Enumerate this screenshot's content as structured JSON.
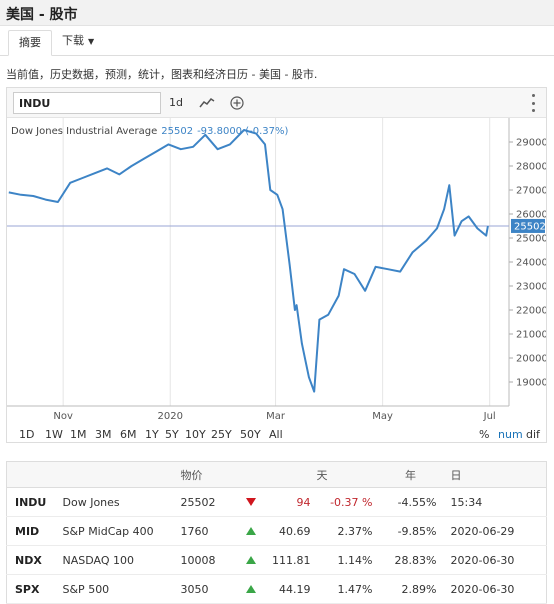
{
  "page": {
    "title": "美国 - 股市"
  },
  "tabs": [
    {
      "label": "摘要",
      "active": true
    },
    {
      "label": "下载",
      "active": false
    }
  ],
  "description": "当前值，历史数据，预测，统计，图表和经济日历 - 美国 - 股市.",
  "toolbar": {
    "symbol_value": "INDU",
    "interval_label": "1d",
    "chart_type_icon": "line-chart-icon",
    "add_icon": "plus-circle-icon",
    "menu_icon": "kebab-menu-icon"
  },
  "chart_data": {
    "type": "line",
    "series": [
      {
        "name": "Dow Jones Industrial Average"
      }
    ],
    "legend": {
      "name": "Dow Jones Industrial Average",
      "value": "25502",
      "change": "-93.8000 (-0.37%)"
    },
    "current_value": 25502,
    "current_label": "25502",
    "ylim": [
      18000,
      30000
    ],
    "yticks": [
      "19000",
      "20000",
      "21000",
      "22000",
      "23000",
      "24000",
      "25000",
      "26000",
      "27000",
      "28000",
      "29000"
    ],
    "xticks": [
      "Nov",
      "2020",
      "Mar",
      "May",
      "Jul"
    ],
    "x": [
      "2019-10-01",
      "2019-10-08",
      "2019-10-15",
      "2019-10-22",
      "2019-10-29",
      "2019-11-05",
      "2019-11-12",
      "2019-11-19",
      "2019-11-26",
      "2019-12-03",
      "2019-12-10",
      "2019-12-17",
      "2019-12-24",
      "2019-12-31",
      "2020-01-07",
      "2020-01-14",
      "2020-01-21",
      "2020-01-28",
      "2020-02-04",
      "2020-02-12",
      "2020-02-19",
      "2020-02-24",
      "2020-02-27",
      "2020-03-02",
      "2020-03-05",
      "2020-03-09",
      "2020-03-12",
      "2020-03-13",
      "2020-03-16",
      "2020-03-18",
      "2020-03-20",
      "2020-03-23",
      "2020-03-26",
      "2020-03-31",
      "2020-04-06",
      "2020-04-09",
      "2020-04-15",
      "2020-04-21",
      "2020-04-27",
      "2020-05-04",
      "2020-05-11",
      "2020-05-18",
      "2020-05-26",
      "2020-06-01",
      "2020-06-05",
      "2020-06-08",
      "2020-06-11",
      "2020-06-15",
      "2020-06-19",
      "2020-06-24",
      "2020-06-29",
      "2020-06-30"
    ],
    "values": [
      26900,
      26800,
      26750,
      26600,
      26500,
      27300,
      27500,
      27700,
      27900,
      27650,
      28000,
      28300,
      28600,
      28900,
      28700,
      28800,
      29300,
      28700,
      28900,
      29500,
      29350,
      28900,
      27000,
      26800,
      26200,
      23900,
      22000,
      22200,
      20600,
      19900,
      19200,
      18600,
      21600,
      21800,
      22600,
      23700,
      23500,
      22800,
      23800,
      23700,
      23600,
      24400,
      24900,
      25400,
      26200,
      27200,
      25100,
      25700,
      25900,
      25400,
      25100,
      25500
    ],
    "grid": true
  },
  "ranges": [
    "1D",
    "1W",
    "1M",
    "3M",
    "6M",
    "1Y",
    "5Y",
    "10Y",
    "25Y",
    "50Y",
    "All"
  ],
  "modes": [
    {
      "label": "%",
      "active": false
    },
    {
      "label": "num",
      "active": true
    },
    {
      "label": "dif",
      "active": false
    }
  ],
  "quotes": {
    "headers": {
      "price": "物价",
      "day": "天",
      "year": "年",
      "date": "日"
    },
    "rows": [
      {
        "symbol": "INDU",
        "name": "Dow Jones",
        "price": "25502",
        "direction": "down",
        "change": "94",
        "pct": "-0.37 %",
        "ytd": "-4.55%",
        "date": "15:34"
      },
      {
        "symbol": "MID",
        "name": "S&P MidCap 400",
        "price": "1760",
        "direction": "up",
        "change": "40.69",
        "pct": "2.37%",
        "ytd": "-9.85%",
        "date": "2020-06-29"
      },
      {
        "symbol": "NDX",
        "name": "NASDAQ 100",
        "price": "10008",
        "direction": "up",
        "change": "111.81",
        "pct": "1.14%",
        "ytd": "28.83%",
        "date": "2020-06-30"
      },
      {
        "symbol": "SPX",
        "name": "S&P 500",
        "price": "3050",
        "direction": "up",
        "change": "44.19",
        "pct": "1.47%",
        "ytd": "2.89%",
        "date": "2020-06-30"
      }
    ]
  },
  "colors": {
    "line": "#3d84c6",
    "current_line": "#9aa6d6",
    "current_tag": "#3d84c6",
    "grid": "#e6e6e6",
    "up": "#3aa647",
    "down": "#d0161e"
  }
}
